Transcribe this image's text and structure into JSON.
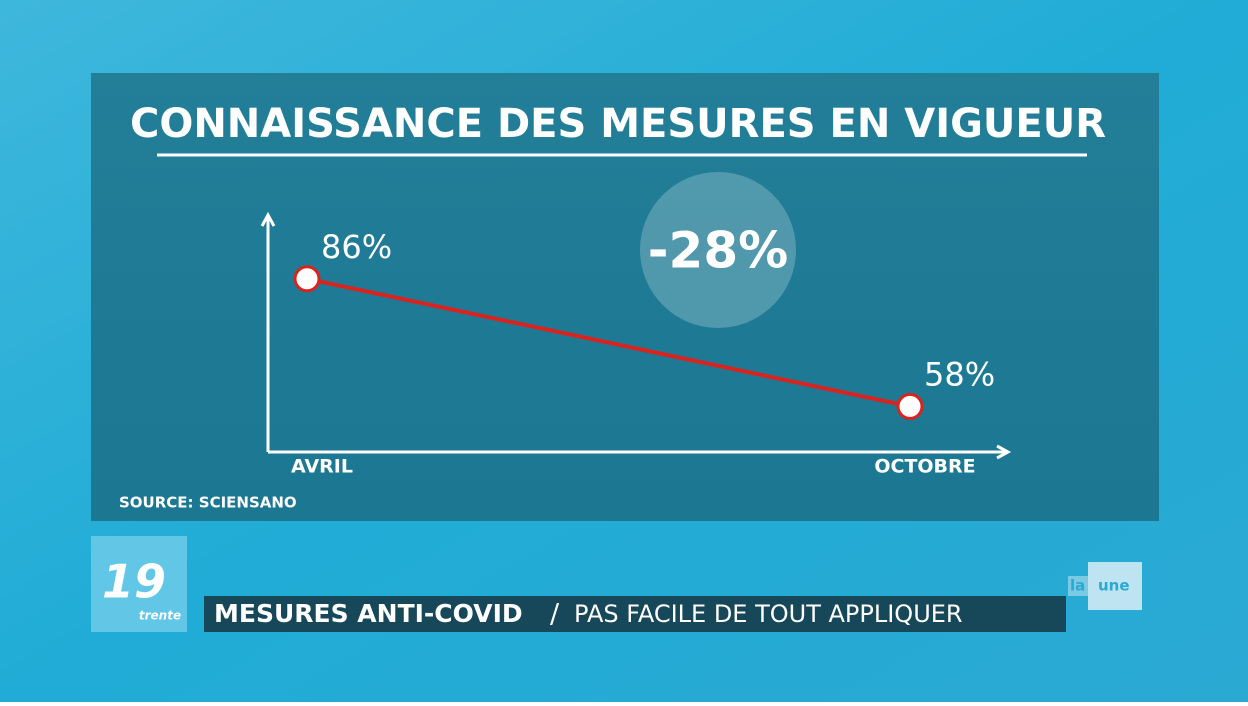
{
  "chart_data": {
    "type": "line",
    "title": "CONNAISSANCE DES MESURES EN VIGUEUR",
    "categories": [
      "AVRIL",
      "OCTOBRE"
    ],
    "series": [
      {
        "color": "#d9231f",
        "values": [
          86,
          58
        ],
        "value_labels": [
          "86%",
          "58%"
        ]
      }
    ],
    "ylim": [
      48,
      100
    ],
    "annotation": "-28%",
    "source": "SOURCE: SCIENSANO"
  },
  "overlay": {
    "logo_number": "19",
    "logo_sub": "trente",
    "headline_bold": "MESURES ANTI-COVID",
    "headline_sep": "/",
    "headline_rest": "PAS FACILE DE TOUT APPLIQUER",
    "channel_a": "la",
    "channel_b": "une"
  }
}
